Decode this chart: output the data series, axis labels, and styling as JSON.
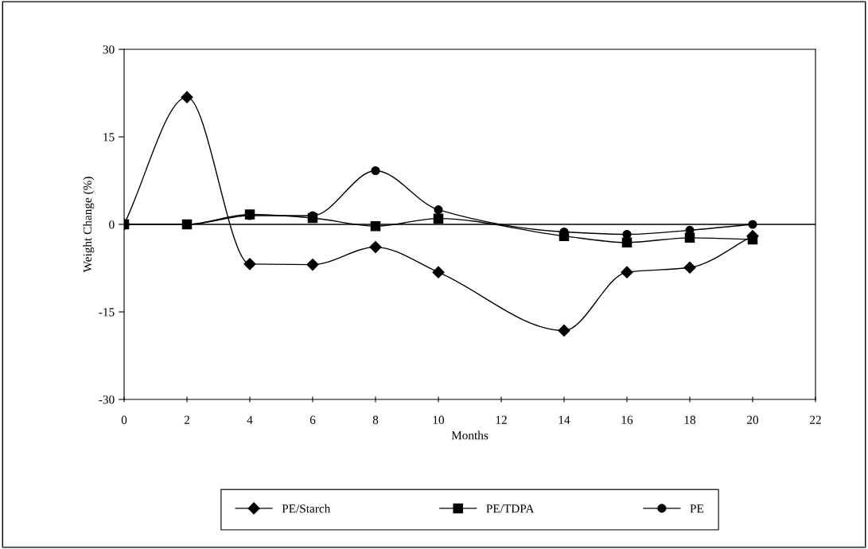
{
  "chart_data": {
    "type": "line",
    "xlabel": "Months",
    "ylabel": "Weight Change (%)",
    "x": [
      0,
      2,
      4,
      6,
      8,
      10,
      14,
      16,
      18,
      20
    ],
    "series": [
      {
        "name": "PE/Starch",
        "color": "#000000",
        "marker": "diamond",
        "values": [
          0,
          21.8,
          -6.8,
          -6.9,
          -3.9,
          -8.2,
          -18.2,
          -8.2,
          -7.4,
          -2.0
        ]
      },
      {
        "name": "PE/TDPA",
        "color": "#000000",
        "marker": "square",
        "values": [
          0,
          0,
          1.7,
          1.1,
          -0.3,
          1.0,
          -2.0,
          -3.1,
          -2.3,
          -2.6
        ]
      },
      {
        "name": "PE",
        "color": "#000000",
        "marker": "circle",
        "values": [
          0,
          0,
          1.5,
          1.5,
          9.2,
          2.5,
          -1.3,
          -1.7,
          -1.0,
          0
        ]
      }
    ],
    "ref_lines": [
      {
        "axis": "y",
        "value": 0,
        "color": "#000000"
      }
    ],
    "xlim": [
      0,
      22
    ],
    "xticks": [
      0,
      2,
      4,
      6,
      8,
      10,
      12,
      14,
      16,
      18,
      20,
      22
    ],
    "ylim": [
      -30,
      30
    ],
    "yticks": [
      -30,
      -15,
      0,
      15,
      30
    ],
    "grid": false,
    "legend": "bottom",
    "line_style": "solid"
  }
}
